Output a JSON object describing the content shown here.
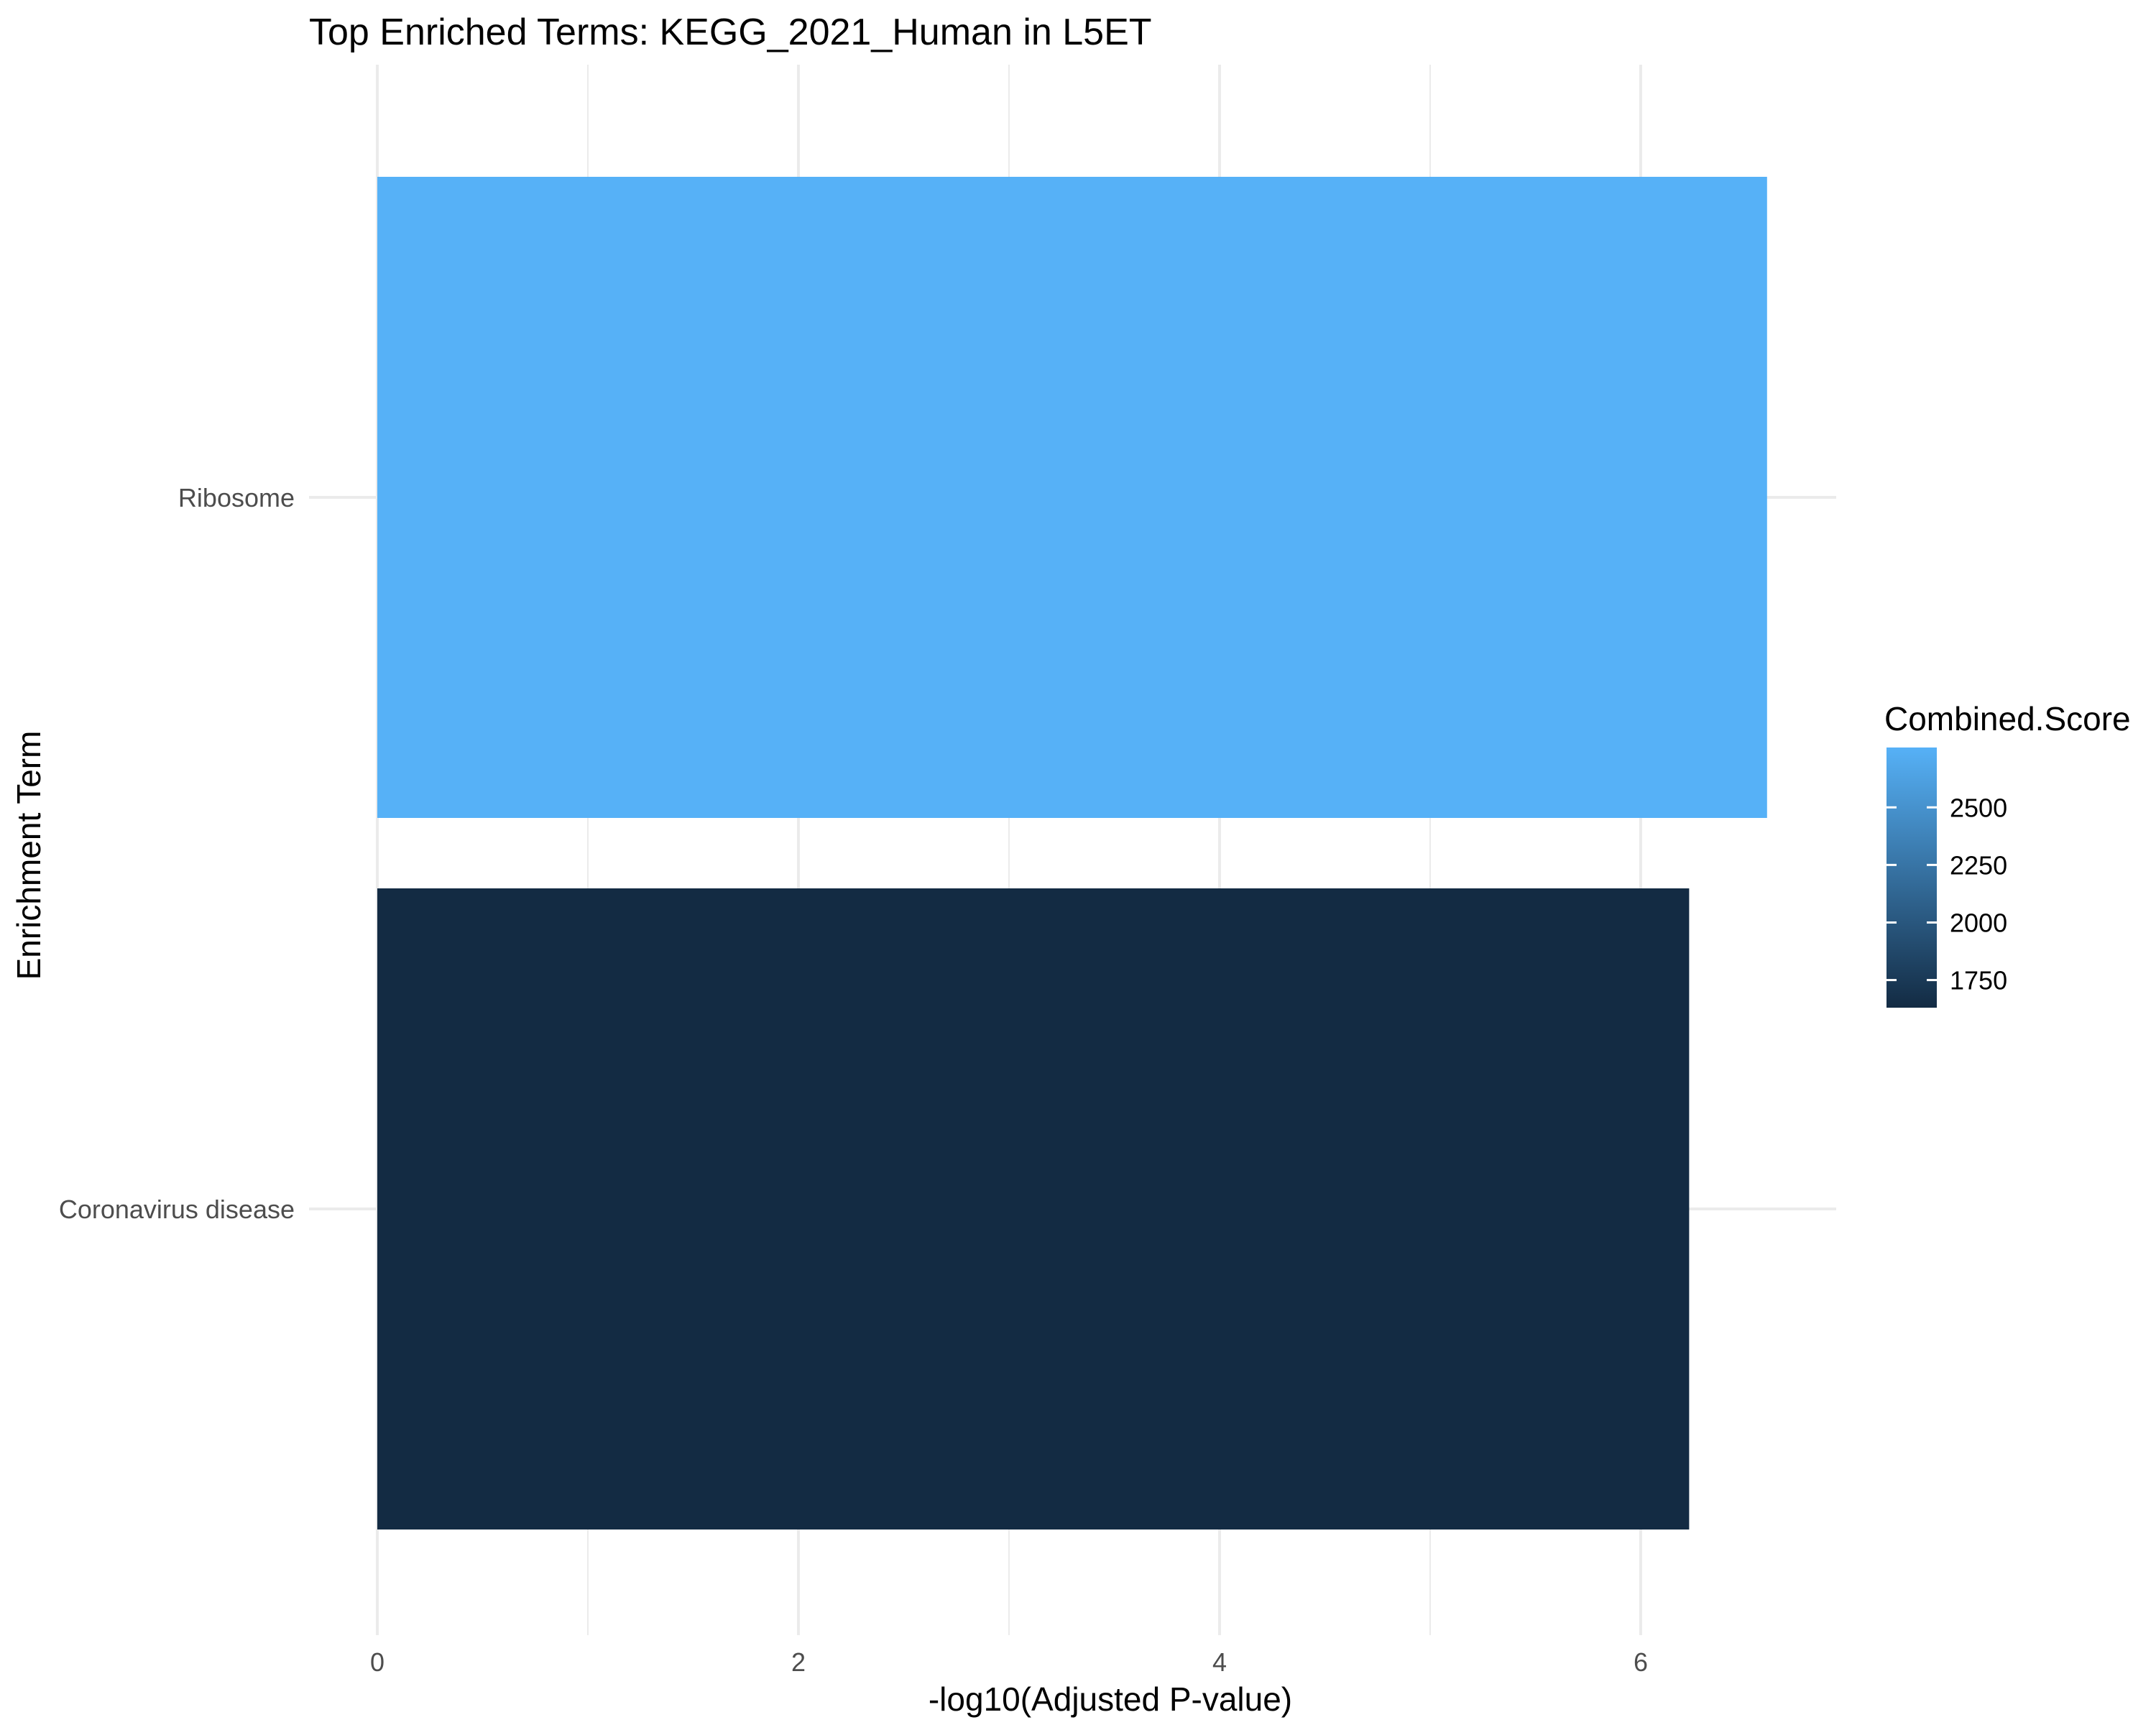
{
  "chart_data": {
    "type": "bar",
    "orientation": "horizontal",
    "title": "Top Enriched Terms: KEGG_2021_Human in L5ET",
    "xlabel": "-log10(Adjusted P-value)",
    "ylabel": "Enrichment Term",
    "xlim": [
      0,
      6.9
    ],
    "xticks": [
      0,
      2,
      4,
      6
    ],
    "grid": true,
    "categories": [
      "Ribosome",
      "Coronavirus disease"
    ],
    "values": [
      6.6,
      6.23
    ],
    "fill_values": [
      2760,
      1630
    ],
    "legend": {
      "title": "Combined.Score",
      "placement": "right",
      "type": "colorbar",
      "ticks": [
        2500,
        2250,
        2000,
        1750
      ],
      "range": [
        1630,
        2760
      ],
      "low_color": "#132B43",
      "high_color": "#56B1F7"
    }
  }
}
